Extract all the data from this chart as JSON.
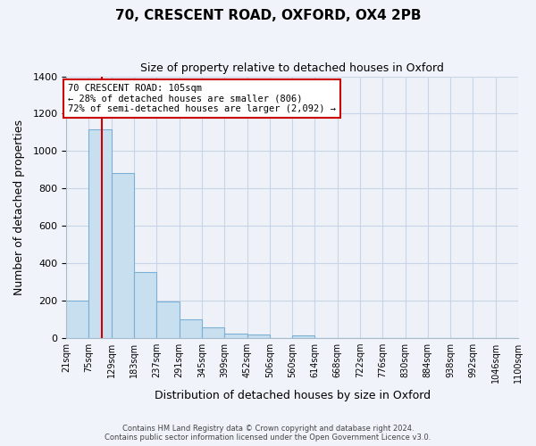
{
  "title": "70, CRESCENT ROAD, OXFORD, OX4 2PB",
  "subtitle": "Size of property relative to detached houses in Oxford",
  "xlabel": "Distribution of detached houses by size in Oxford",
  "ylabel": "Number of detached properties",
  "bar_color": "#c8dff0",
  "bar_edge_color": "#7bafd4",
  "bin_labels": [
    "21sqm",
    "75sqm",
    "129sqm",
    "183sqm",
    "237sqm",
    "291sqm",
    "345sqm",
    "399sqm",
    "452sqm",
    "506sqm",
    "560sqm",
    "614sqm",
    "668sqm",
    "722sqm",
    "776sqm",
    "830sqm",
    "884sqm",
    "938sqm",
    "992sqm",
    "1046sqm",
    "1100sqm"
  ],
  "bar_heights": [
    200,
    1115,
    880,
    350,
    195,
    100,
    55,
    20,
    15,
    0,
    10,
    0,
    0,
    0,
    0,
    0,
    0,
    0,
    0,
    0
  ],
  "ylim": [
    0,
    1400
  ],
  "yticks": [
    0,
    200,
    400,
    600,
    800,
    1000,
    1200,
    1400
  ],
  "bin_edges": [
    21,
    75,
    129,
    183,
    237,
    291,
    345,
    399,
    452,
    506,
    560,
    614,
    668,
    722,
    776,
    830,
    884,
    938,
    992,
    1046,
    1100
  ],
  "property_sqm": 105,
  "property_line_label": "70 CRESCENT ROAD: 105sqm",
  "annotation_smaller": "← 28% of detached houses are smaller (806)",
  "annotation_larger": "72% of semi-detached houses are larger (2,092) →",
  "annotation_box_color": "#ffffff",
  "annotation_box_edge": "#cc0000",
  "line_color": "#cc0000",
  "footer_line1": "Contains HM Land Registry data © Crown copyright and database right 2024.",
  "footer_line2": "Contains public sector information licensed under the Open Government Licence v3.0.",
  "bg_color": "#f0f4fa",
  "plot_bg_color": "#eef2f8",
  "grid_color": "#c8d4e8",
  "spine_color": "#aabbcc"
}
